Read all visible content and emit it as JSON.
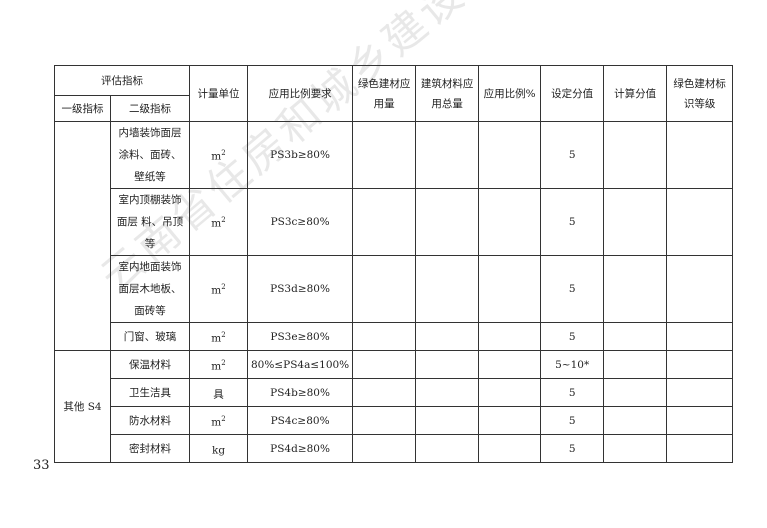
{
  "watermark": "云南省住房和城乡建设厅信息公开浏览专用",
  "page_number": "33",
  "table": {
    "headers": {
      "eval_index": "评估指标",
      "level1": "一级指标",
      "level2": "二级指标",
      "unit": "计量单位",
      "requirement": "应用比例要求",
      "green_amount": "绿色建材应用量",
      "total_amount": "建筑材料应用总量",
      "ratio": "应用比例%",
      "set_score": "设定分值",
      "calc_score": "计算分值",
      "grade": "绿色建材标识等级"
    },
    "group_s4": "其他 S4",
    "rows": [
      {
        "item": "内墙装饰面层涂料、面砖、壁纸等",
        "unit": "m",
        "unit_sup": "2",
        "req": "PS3b≥80%",
        "score": "5"
      },
      {
        "item": "室内顶棚装饰面层 料、吊顶等",
        "unit": "m",
        "unit_sup": "2",
        "req": "PS3c≥80%",
        "score": "5"
      },
      {
        "item": "室内地面装饰面层木地板、面砖等",
        "unit": "m",
        "unit_sup": "2",
        "req": "PS3d≥80%",
        "score": "5"
      },
      {
        "item": "门窗、玻璃",
        "unit": "m",
        "unit_sup": "2",
        "req": "PS3e≥80%",
        "score": "5"
      },
      {
        "item": "保温材料",
        "unit": "m",
        "unit_sup": "2",
        "req": "80%≤PS4a≤100%",
        "score": "5~10*"
      },
      {
        "item": "卫生洁具",
        "unit": "具",
        "unit_sup": "",
        "req": "PS4b≥80%",
        "score": "5"
      },
      {
        "item": "防水材料",
        "unit": "m",
        "unit_sup": "2",
        "req": "PS4c≥80%",
        "score": "5"
      },
      {
        "item": "密封材料",
        "unit": "kg",
        "unit_sup": "",
        "req": "PS4d≥80%",
        "score": "5"
      }
    ]
  }
}
